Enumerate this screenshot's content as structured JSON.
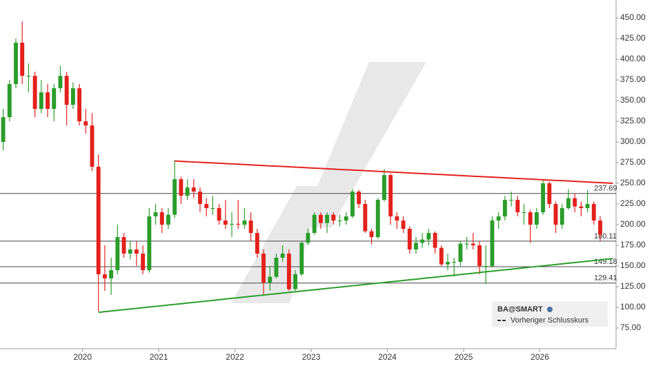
{
  "chart_data": {
    "type": "candlestick",
    "categories": [
      null,
      null,
      null,
      null,
      null,
      null,
      null,
      null,
      null,
      null,
      null,
      null,
      null,
      "2020",
      null,
      null,
      null,
      null,
      null,
      null,
      null,
      null,
      null,
      null,
      null,
      "2021",
      null,
      null,
      null,
      null,
      null,
      null,
      null,
      null,
      null,
      null,
      null,
      "2022",
      null,
      null,
      null,
      null,
      null,
      null,
      null,
      null,
      null,
      null,
      null,
      "2023",
      null,
      null,
      null,
      null,
      null,
      null,
      null,
      null,
      null,
      null,
      null,
      "2024",
      null,
      null,
      null,
      null,
      null,
      null,
      null,
      null,
      null,
      null,
      null,
      "2025",
      null,
      null,
      null,
      null,
      null,
      null,
      null,
      null,
      null,
      null,
      null,
      "2026",
      null,
      null,
      null,
      null,
      null,
      null,
      null,
      null,
      null,
      null,
      null
    ],
    "open": [
      300,
      330,
      370,
      420,
      380,
      380,
      340,
      360,
      340,
      365,
      380,
      345,
      365,
      325,
      320,
      270,
      140,
      135,
      145,
      185,
      165,
      170,
      165,
      145,
      210,
      215,
      200,
      212,
      255,
      235,
      245,
      240,
      225,
      220,
      220,
      205,
      200,
      201,
      200,
      205,
      190,
      165,
      130,
      137,
      160,
      165,
      122,
      140,
      178,
      190,
      212,
      202,
      212,
      205,
      205,
      210,
      240,
      225,
      192,
      185,
      230,
      260,
      210,
      205,
      195,
      170,
      178,
      182,
      190,
      172,
      152,
      155,
      155,
      177,
      177,
      175,
      150,
      150,
      205,
      210,
      230,
      230,
      215,
      215,
      200,
      215,
      250,
      225,
      200,
      220,
      232,
      222,
      220,
      225,
      205,
      null,
      null
    ],
    "high": [
      340,
      375,
      425,
      446,
      395,
      385,
      375,
      370,
      370,
      392,
      385,
      372,
      370,
      340,
      335,
      285,
      175,
      160,
      200,
      190,
      180,
      180,
      175,
      220,
      225,
      220,
      220,
      278,
      258,
      255,
      255,
      245,
      232,
      235,
      225,
      230,
      215,
      230,
      220,
      215,
      195,
      170,
      150,
      165,
      175,
      170,
      145,
      180,
      195,
      215,
      215,
      215,
      215,
      212,
      215,
      243,
      242,
      230,
      195,
      232,
      267,
      262,
      215,
      210,
      198,
      185,
      190,
      195,
      192,
      175,
      165,
      160,
      180,
      185,
      190,
      180,
      175,
      210,
      215,
      235,
      240,
      235,
      225,
      218,
      220,
      255,
      252,
      228,
      225,
      243,
      238,
      228,
      242,
      228,
      210,
      null,
      null
    ],
    "low": [
      290,
      325,
      365,
      370,
      360,
      330,
      335,
      330,
      325,
      360,
      320,
      340,
      320,
      310,
      265,
      95,
      120,
      115,
      140,
      160,
      158,
      150,
      140,
      142,
      200,
      190,
      195,
      208,
      225,
      230,
      232,
      215,
      210,
      212,
      200,
      195,
      185,
      195,
      195,
      180,
      160,
      115,
      120,
      135,
      155,
      120,
      120,
      138,
      175,
      188,
      195,
      190,
      200,
      198,
      200,
      208,
      220,
      190,
      176,
      183,
      228,
      200,
      195,
      190,
      165,
      165,
      172,
      175,
      165,
      150,
      145,
      137,
      150,
      170,
      170,
      140,
      128,
      148,
      195,
      205,
      222,
      210,
      200,
      178,
      195,
      212,
      220,
      190,
      195,
      218,
      215,
      210,
      215,
      200,
      180,
      null,
      null
    ],
    "close": [
      330,
      370,
      420,
      380,
      380,
      340,
      360,
      340,
      365,
      380,
      345,
      365,
      325,
      320,
      270,
      140,
      135,
      145,
      185,
      165,
      170,
      165,
      145,
      210,
      215,
      200,
      212,
      255,
      235,
      245,
      240,
      225,
      220,
      220,
      205,
      200,
      201,
      200,
      205,
      190,
      165,
      130,
      137,
      160,
      165,
      122,
      140,
      178,
      190,
      212,
      202,
      212,
      205,
      205,
      210,
      240,
      225,
      192,
      185,
      230,
      260,
      210,
      205,
      195,
      170,
      178,
      182,
      190,
      172,
      152,
      155,
      155,
      177,
      177,
      175,
      150,
      150,
      205,
      210,
      230,
      230,
      215,
      215,
      200,
      215,
      250,
      225,
      200,
      220,
      232,
      222,
      220,
      225,
      205,
      188,
      null,
      null
    ],
    "up_color": "#2a9d2a",
    "down_color": "#e3211c",
    "ylim": [
      50,
      471.7
    ],
    "yticks": [
      {
        "value": 75,
        "label": "75.00"
      },
      {
        "value": 100,
        "label": "100.00"
      },
      {
        "value": 125,
        "label": "125.00"
      },
      {
        "value": 150,
        "label": "150.00"
      },
      {
        "value": 175,
        "label": "175.00"
      },
      {
        "value": 200,
        "label": "200.00"
      },
      {
        "value": 225,
        "label": "225.00"
      },
      {
        "value": 250,
        "label": "250.00"
      },
      {
        "value": 275,
        "label": "275.00"
      },
      {
        "value": 300,
        "label": "300.00"
      },
      {
        "value": 325,
        "label": "325.00"
      },
      {
        "value": 350,
        "label": "350.00"
      },
      {
        "value": 375,
        "label": "375.00"
      },
      {
        "value": 400,
        "label": "400.00"
      },
      {
        "value": 425,
        "label": "425.00"
      },
      {
        "value": 450,
        "label": "450.00"
      }
    ],
    "levels": [
      237.69,
      180.11,
      149.18,
      129.41
    ],
    "trendlines": [
      {
        "color": "#e3211c",
        "values": [
          null,
          null,
          null,
          null,
          null,
          null,
          null,
          null,
          null,
          null,
          null,
          null,
          null,
          null,
          null,
          null,
          null,
          null,
          null,
          null,
          null,
          null,
          null,
          null,
          null,
          null,
          null,
          277.0,
          276.6,
          276.2,
          275.8,
          275.4,
          275.0,
          274.7,
          274.3,
          273.9,
          273.5,
          273.1,
          272.7,
          272.3,
          271.9,
          271.5,
          271.1,
          270.7,
          270.4,
          270.0,
          269.6,
          269.2,
          268.8,
          268.4,
          268.0,
          267.6,
          267.2,
          266.8,
          266.4,
          266.1,
          265.7,
          265.3,
          264.9,
          264.5,
          264.1,
          263.7,
          263.3,
          262.9,
          262.5,
          262.1,
          261.8,
          261.4,
          261.0,
          260.6,
          260.2,
          259.8,
          259.4,
          259.0,
          258.6,
          258.2,
          257.8,
          257.5,
          257.1,
          256.7,
          256.3,
          255.9,
          255.5,
          255.1,
          254.7,
          254.3,
          253.9,
          253.5,
          253.2,
          252.8,
          252.4,
          252.0,
          251.6,
          251.2,
          250.8,
          250.4,
          250.0
        ]
      },
      {
        "color": "#2a9d2a",
        "values": [
          null,
          null,
          null,
          null,
          null,
          null,
          null,
          null,
          null,
          null,
          null,
          null,
          null,
          null,
          null,
          94.0,
          94.8,
          95.6,
          96.4,
          97.2,
          98.0,
          98.8,
          99.6,
          100.4,
          101.2,
          102.0,
          102.8,
          103.6,
          104.4,
          105.2,
          106.0,
          106.8,
          107.6,
          108.4,
          109.2,
          110.1,
          110.9,
          111.7,
          112.5,
          113.3,
          114.1,
          114.9,
          115.7,
          116.5,
          117.3,
          118.1,
          118.9,
          119.7,
          120.5,
          121.3,
          122.1,
          122.9,
          123.7,
          124.5,
          125.3,
          126.1,
          126.9,
          127.7,
          128.5,
          129.3,
          130.1,
          130.9,
          131.7,
          132.5,
          133.3,
          134.1,
          134.9,
          135.7,
          136.5,
          137.3,
          138.1,
          138.9,
          139.7,
          140.5,
          141.3,
          142.2,
          143.0,
          143.8,
          144.6,
          145.4,
          146.2,
          147.0,
          147.8,
          148.6,
          149.4,
          150.2,
          151.0,
          151.8,
          152.6,
          153.4,
          154.2,
          155.0,
          155.8,
          156.6,
          157.4,
          158.2,
          159.0
        ]
      }
    ],
    "legend": {
      "title": "BA@SMART",
      "items": [
        "Vorheriger Schlusskurs"
      ]
    }
  }
}
